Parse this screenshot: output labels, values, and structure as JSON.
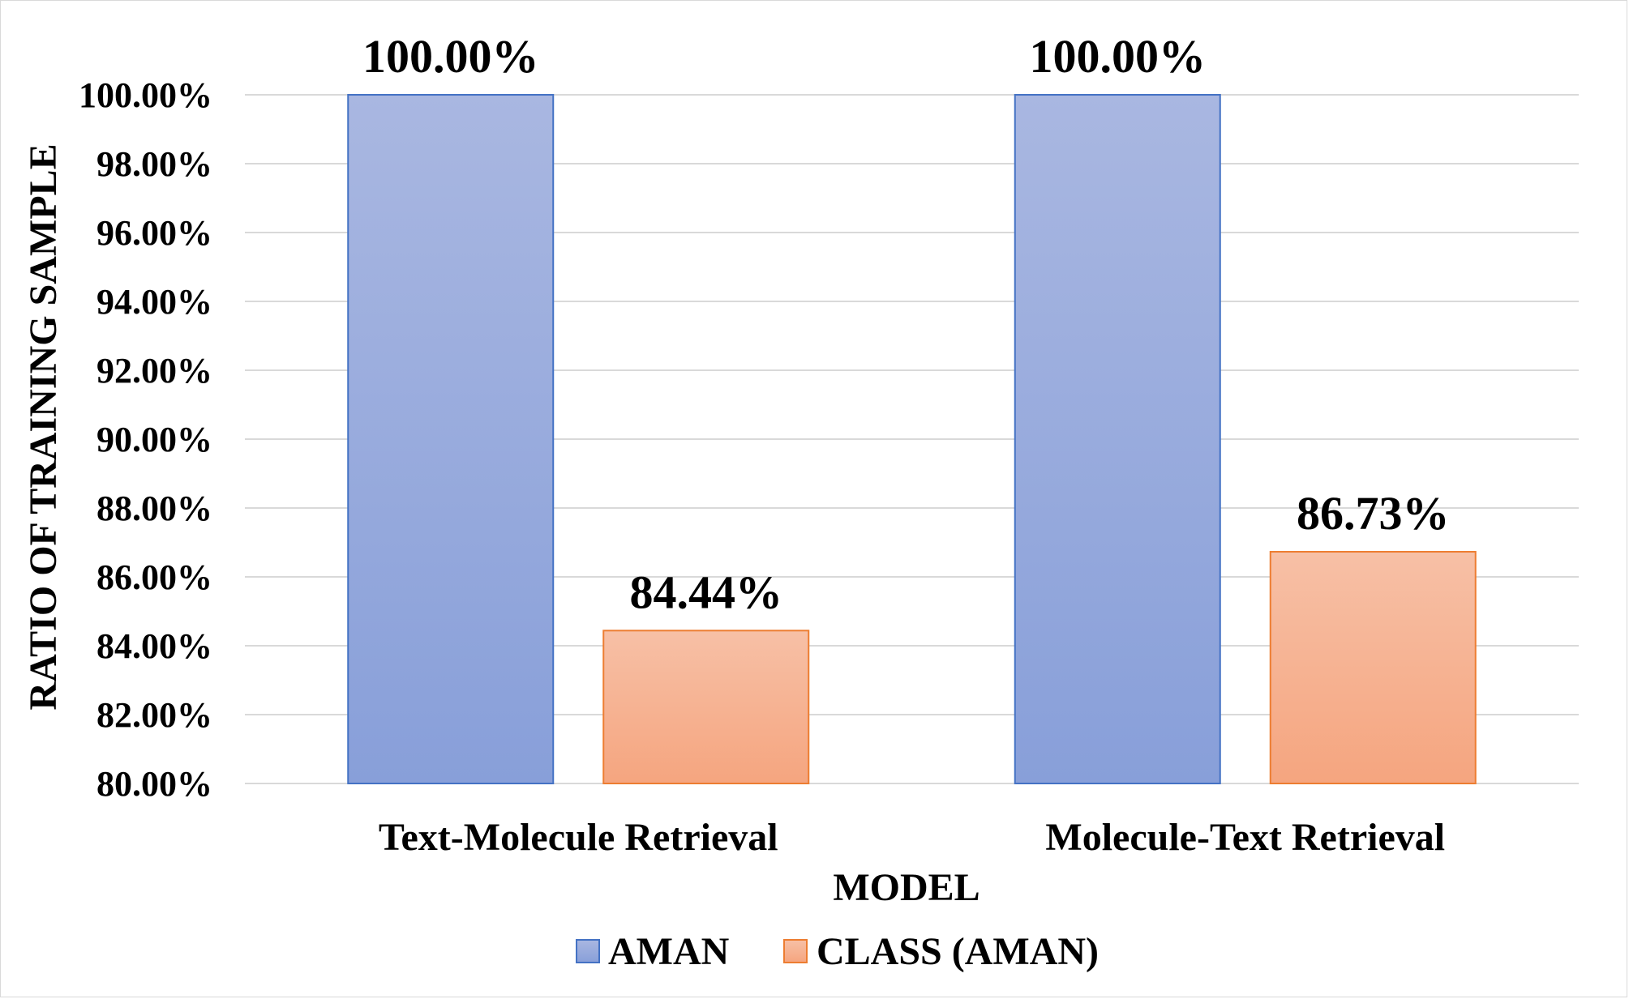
{
  "chart_data": {
    "type": "bar",
    "title": "",
    "xlabel": "MODEL",
    "ylabel": "RATIO OF TRAINING SAMPLE",
    "categories": [
      "Text-Molecule Retrieval",
      "Molecule-Text Retrieval"
    ],
    "series": [
      {
        "name": "AMAN",
        "values": [
          100.0,
          100.0
        ],
        "labels": [
          "100.00%",
          "100.00%"
        ],
        "color_top": "#a9b7e1",
        "color_bottom": "#889fd9",
        "stroke": "#4472c4"
      },
      {
        "name": "CLASS (AMAN)",
        "values": [
          84.44,
          86.73
        ],
        "labels": [
          "84.44%",
          "86.73%"
        ],
        "color_top": "#f7c0a6",
        "color_bottom": "#f5a57f",
        "stroke": "#ed7d31"
      }
    ],
    "ylim": [
      80,
      100
    ],
    "yticks": [
      80,
      82,
      84,
      86,
      88,
      90,
      92,
      94,
      96,
      98,
      100
    ],
    "ytick_labels": [
      "80.00%",
      "82.00%",
      "84.00%",
      "86.00%",
      "88.00%",
      "90.00%",
      "92.00%",
      "94.00%",
      "96.00%",
      "98.00%",
      "100.00%"
    ],
    "grid": true,
    "legend_position": "bottom"
  }
}
